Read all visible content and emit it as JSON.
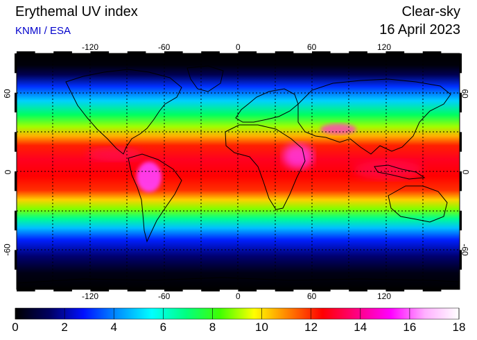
{
  "header": {
    "title": "Erythemal UV index",
    "credit": "KNMI / ESA",
    "mode": "Clear-sky",
    "date": "16 April 2023"
  },
  "axes": {
    "lon_ticks": [
      "-120",
      "-60",
      "0",
      "60",
      "120"
    ],
    "lat_ticks": [
      "60",
      "0",
      "-60"
    ]
  },
  "colorbar": {
    "min": 0,
    "max": 18,
    "labels": [
      "0",
      "2",
      "4",
      "6",
      "8",
      "10",
      "12",
      "14",
      "16",
      "18"
    ],
    "stops": [
      "#000000",
      "#000060",
      "#0010ff",
      "#0090ff",
      "#00ffff",
      "#00ff80",
      "#40ff00",
      "#ffff00",
      "#ff8000",
      "#ff0000",
      "#ff0080",
      "#ff00ff",
      "#ffb0ff",
      "#ffffff"
    ]
  },
  "map_style": {
    "projection": "equirectangular",
    "grid": "dotted 30 degree"
  }
}
